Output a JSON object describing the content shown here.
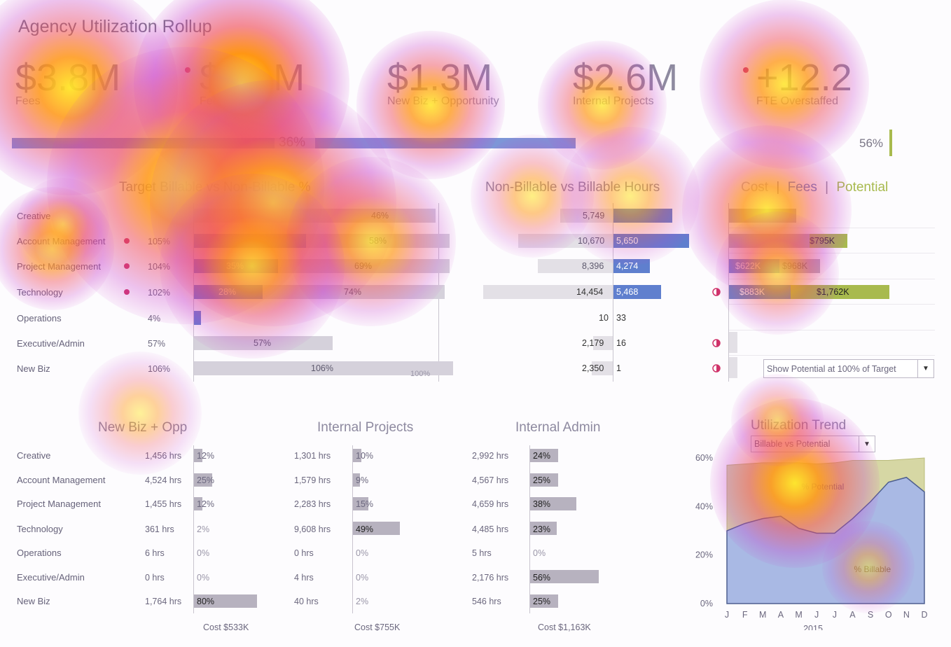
{
  "title": "Agency Utilization Rollup",
  "kpis": [
    {
      "value": "$3.8M",
      "label": "Fees"
    },
    {
      "value": "$1.1M",
      "label": "Fees"
    },
    {
      "value": "$1.3M",
      "label": "New Biz + Opportunity"
    },
    {
      "value": "$2.6M",
      "label": "Internal Projects"
    },
    {
      "value": "+12.2",
      "label": "FTE Overstaffed"
    }
  ],
  "progress": {
    "left_label": "36%",
    "right_label": "56%",
    "left_fraction": 0.36
  },
  "sections": {
    "target_billable": "Target Billable vs Non-Billable %",
    "hours": "Non-Billable vs Billable Hours",
    "cost_fees": [
      "Cost",
      "|",
      "Fees",
      "|",
      "Potential"
    ]
  },
  "departments": [
    "Creative",
    "Account Management",
    "Project Management",
    "Technology",
    "Operations",
    "Executive/Admin",
    "New Biz"
  ],
  "target_pct": [
    "",
    "105%",
    "104%",
    "102%",
    "4%",
    "57%",
    "106%"
  ],
  "billable_bars": [
    {
      "blue": "",
      "grey": "46%"
    },
    {
      "blue": "",
      "grey": "58%"
    },
    {
      "blue": "35%",
      "grey": "69%"
    },
    {
      "blue": "28%",
      "grey": "74%"
    },
    {
      "blue": "",
      "grey": ""
    },
    {
      "blue": "",
      "grey": "57%"
    },
    {
      "blue": "",
      "grey": "106%"
    }
  ],
  "target_ref_label": "100%",
  "hours_rows": [
    {
      "non_billable": "5,749",
      "billable": ""
    },
    {
      "non_billable": "10,670",
      "billable": "5,650"
    },
    {
      "non_billable": "8,396",
      "billable": "4,274"
    },
    {
      "non_billable": "14,454",
      "billable": "5,468"
    },
    {
      "non_billable": "10",
      "billable": "33"
    },
    {
      "non_billable": "2,179",
      "billable": "16"
    },
    {
      "non_billable": "2,350",
      "billable": "1"
    }
  ],
  "fees_rows": [
    {
      "cost": "",
      "fees": ""
    },
    {
      "cost": "",
      "fees": "$795K"
    },
    {
      "cost": "$622K",
      "fees": "$968K"
    },
    {
      "cost": "$883K",
      "fees": "$1,762K"
    },
    {
      "cost": "",
      "fees": ""
    },
    {
      "cost": "",
      "fees": ""
    },
    {
      "cost": "",
      "fees": ""
    }
  ],
  "potential_select": "Show Potential at 100% of Target",
  "bottom_titles": {
    "newbiz": "New Biz + Opp",
    "internal_projects": "Internal Projects",
    "internal_admin": "Internal Admin",
    "trend": "Utilization Trend"
  },
  "bottom_departments": [
    "Creative",
    "Account Management",
    "Project Management",
    "Technology",
    "Operations",
    "Executive/Admin",
    "New Biz"
  ],
  "newbiz_rows": [
    {
      "hrs": "1,456 hrs",
      "pct": "12%"
    },
    {
      "hrs": "4,524 hrs",
      "pct": "25%"
    },
    {
      "hrs": "1,455 hrs",
      "pct": "12%"
    },
    {
      "hrs": "361 hrs",
      "pct": "2%"
    },
    {
      "hrs": "6 hrs",
      "pct": "0%"
    },
    {
      "hrs": "0 hrs",
      "pct": "0%"
    },
    {
      "hrs": "1,764 hrs",
      "pct": "80%"
    }
  ],
  "internal_projects_rows": [
    {
      "hrs": "1,301 hrs",
      "pct": "10%"
    },
    {
      "hrs": "1,579 hrs",
      "pct": "9%"
    },
    {
      "hrs": "2,283 hrs",
      "pct": "15%"
    },
    {
      "hrs": "9,608 hrs",
      "pct": "49%"
    },
    {
      "hrs": "0 hrs",
      "pct": "0%"
    },
    {
      "hrs": "4 hrs",
      "pct": "0%"
    },
    {
      "hrs": "40 hrs",
      "pct": "2%"
    }
  ],
  "internal_admin_rows": [
    {
      "hrs": "2,992 hrs",
      "pct": "24%"
    },
    {
      "hrs": "4,567 hrs",
      "pct": "25%"
    },
    {
      "hrs": "4,659 hrs",
      "pct": "38%"
    },
    {
      "hrs": "4,485 hrs",
      "pct": "23%"
    },
    {
      "hrs": "5 hrs",
      "pct": "0%"
    },
    {
      "hrs": "2,176 hrs",
      "pct": "56%"
    },
    {
      "hrs": "546 hrs",
      "pct": "25%"
    }
  ],
  "costs": {
    "newbiz": "Cost  $533K",
    "internal_projects": "Cost  $755K",
    "internal_admin": "Cost  $1,163K"
  },
  "trend_select": "Billable vs Potential",
  "chart_data": {
    "type": "area",
    "title": "Utilization Trend",
    "x": [
      "J",
      "F",
      "M",
      "A",
      "M",
      "J",
      "J",
      "A",
      "S",
      "O",
      "N",
      "D"
    ],
    "xlabel": "2015",
    "ylim": [
      0,
      60
    ],
    "yticks": [
      "0%",
      "20%",
      "40%",
      "60%"
    ],
    "series": [
      {
        "name": "% Potential",
        "values": [
          57,
          57.5,
          58,
          58,
          58,
          57.5,
          58,
          59,
          59,
          59,
          59.5,
          60
        ]
      },
      {
        "name": "% Billable",
        "values": [
          30,
          33,
          35,
          36,
          31,
          29,
          29,
          35,
          42,
          50,
          52,
          46
        ]
      }
    ],
    "colors": {
      "potential": "#d6d7a4",
      "billable": "#a9b9e4"
    }
  },
  "colors": {
    "blue": "#5f7fce",
    "olive": "#a8ba4e",
    "alert": "#d0336a"
  }
}
